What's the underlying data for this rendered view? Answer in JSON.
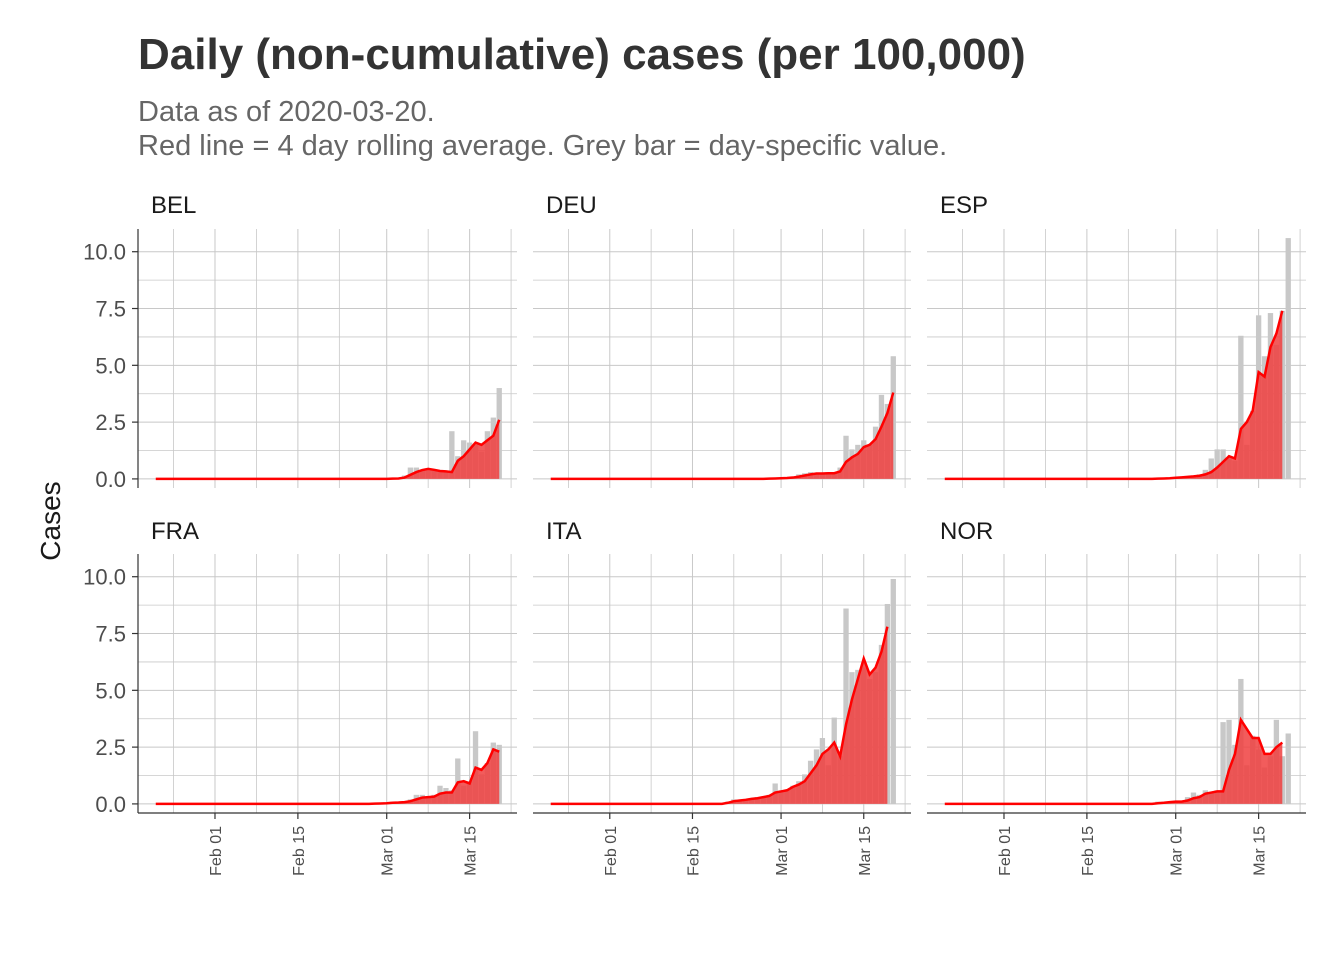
{
  "title": "Daily (non-cumulative) cases (per 100,000)",
  "subtitle_line1": "Data as of 2020-03-20.",
  "subtitle_line2": "Red line = 4 day rolling average. Grey bar = day-specific value.",
  "colors": {
    "bar": "#c8c8c8",
    "line": "#ff0000",
    "area": "#f04040",
    "grid": "#c8c8c8",
    "axis": "#333333"
  },
  "chart_data": {
    "type": "bar",
    "ylabel": "Cases",
    "xlabel": "",
    "ylim": [
      -0.4,
      11
    ],
    "y_ticks": [
      0,
      2.5,
      5,
      7.5,
      10
    ],
    "y_tick_labels": [
      "0.0",
      "2.5",
      "5.0",
      "7.5",
      "10.0"
    ],
    "x_ticks": [
      "2020-02-01",
      "2020-02-15",
      "2020-03-01",
      "2020-03-15"
    ],
    "x_tick_labels": [
      "Feb 01",
      "Feb 15",
      "Mar 01",
      "Mar 15"
    ],
    "x_range": [
      "2020-01-19",
      "2020-03-23"
    ],
    "grid": true,
    "panels": [
      {
        "name": "BEL",
        "dates": [
          "2020-02-20",
          "2020-02-21",
          "2020-02-22",
          "2020-02-23",
          "2020-02-24",
          "2020-02-25",
          "2020-02-26",
          "2020-02-27",
          "2020-02-28",
          "2020-02-29",
          "2020-03-01",
          "2020-03-02",
          "2020-03-03",
          "2020-03-04",
          "2020-03-05",
          "2020-03-06",
          "2020-03-07",
          "2020-03-08",
          "2020-03-09",
          "2020-03-10",
          "2020-03-11",
          "2020-03-12",
          "2020-03-13",
          "2020-03-14",
          "2020-03-15",
          "2020-03-16",
          "2020-03-17",
          "2020-03-18",
          "2020-03-19",
          "2020-03-20"
        ],
        "values": [
          0,
          0,
          0,
          0,
          0,
          0,
          0,
          0,
          0,
          0,
          0,
          0.02,
          0.05,
          0.15,
          0.5,
          0.5,
          0.4,
          0.35,
          0.35,
          0.3,
          0.3,
          2.1,
          1.0,
          1.7,
          1.6,
          1.5,
          1.2,
          2.1,
          2.7,
          4.0
        ],
        "rolling": [
          0,
          0,
          0,
          0,
          0,
          0,
          0,
          0,
          0,
          0,
          0,
          0.01,
          0.02,
          0.06,
          0.18,
          0.3,
          0.39,
          0.44,
          0.4,
          0.35,
          0.33,
          0.3,
          0.8,
          1.0,
          1.3,
          1.6,
          1.5,
          1.7,
          1.9,
          2.6
        ]
      },
      {
        "name": "DEU",
        "dates": [
          "2020-02-20",
          "2020-02-21",
          "2020-02-22",
          "2020-02-23",
          "2020-02-24",
          "2020-02-25",
          "2020-02-26",
          "2020-02-27",
          "2020-02-28",
          "2020-02-29",
          "2020-03-01",
          "2020-03-02",
          "2020-03-03",
          "2020-03-04",
          "2020-03-05",
          "2020-03-06",
          "2020-03-07",
          "2020-03-08",
          "2020-03-09",
          "2020-03-10",
          "2020-03-11",
          "2020-03-12",
          "2020-03-13",
          "2020-03-14",
          "2020-03-15",
          "2020-03-16",
          "2020-03-17",
          "2020-03-18",
          "2020-03-19",
          "2020-03-20"
        ],
        "values": [
          0,
          0,
          0,
          0,
          0,
          0,
          0,
          0.01,
          0.02,
          0.05,
          0.05,
          0.05,
          0.1,
          0.2,
          0.25,
          0.3,
          0.2,
          0.2,
          0.3,
          0.3,
          0.5,
          1.9,
          1.3,
          1.5,
          1.7,
          1.5,
          2.3,
          3.7,
          3.3,
          5.4
        ],
        "rolling": [
          0,
          0,
          0,
          0,
          0,
          0,
          0,
          0,
          0.01,
          0.02,
          0.03,
          0.04,
          0.06,
          0.1,
          0.15,
          0.2,
          0.24,
          0.24,
          0.25,
          0.25,
          0.33,
          0.75,
          0.95,
          1.1,
          1.4,
          1.5,
          1.75,
          2.3,
          2.9,
          3.8
        ]
      },
      {
        "name": "ESP",
        "dates": [
          "2020-02-20",
          "2020-02-21",
          "2020-02-22",
          "2020-02-23",
          "2020-02-24",
          "2020-02-25",
          "2020-02-26",
          "2020-02-27",
          "2020-02-28",
          "2020-02-29",
          "2020-03-01",
          "2020-03-02",
          "2020-03-03",
          "2020-03-04",
          "2020-03-05",
          "2020-03-06",
          "2020-03-07",
          "2020-03-08",
          "2020-03-09",
          "2020-03-10",
          "2020-03-11",
          "2020-03-12",
          "2020-03-13",
          "2020-03-14",
          "2020-03-15",
          "2020-03-16",
          "2020-03-17",
          "2020-03-18",
          "2020-03-19",
          "2020-03-20"
        ],
        "values": [
          0,
          0,
          0,
          0,
          0,
          0,
          0.01,
          0.02,
          0.03,
          0.05,
          0.08,
          0.1,
          0.12,
          0.15,
          0.2,
          0.4,
          0.9,
          1.3,
          1.3,
          0.9,
          0.8,
          6.3,
          1.5,
          3.0,
          7.2,
          5.4,
          7.3,
          5.9,
          7.4,
          10.6
        ],
        "rolling": [
          0,
          0,
          0,
          0,
          0,
          0,
          0,
          0.01,
          0.02,
          0.03,
          0.05,
          0.07,
          0.09,
          0.11,
          0.14,
          0.2,
          0.3,
          0.5,
          0.75,
          1.0,
          0.9,
          2.2,
          2.5,
          3.0,
          4.7,
          4.5,
          5.8,
          6.4,
          7.4,
          null
        ]
      },
      {
        "name": "FRA",
        "dates": [
          "2020-02-20",
          "2020-02-21",
          "2020-02-22",
          "2020-02-23",
          "2020-02-24",
          "2020-02-25",
          "2020-02-26",
          "2020-02-27",
          "2020-02-28",
          "2020-02-29",
          "2020-03-01",
          "2020-03-02",
          "2020-03-03",
          "2020-03-04",
          "2020-03-05",
          "2020-03-06",
          "2020-03-07",
          "2020-03-08",
          "2020-03-09",
          "2020-03-10",
          "2020-03-11",
          "2020-03-12",
          "2020-03-13",
          "2020-03-14",
          "2020-03-15",
          "2020-03-16",
          "2020-03-17",
          "2020-03-18",
          "2020-03-19",
          "2020-03-20"
        ],
        "values": [
          0,
          0,
          0,
          0,
          0,
          0,
          0,
          0.01,
          0.02,
          0.03,
          0.05,
          0.1,
          0.1,
          0.1,
          0.2,
          0.4,
          0.4,
          0.3,
          0.4,
          0.8,
          0.7,
          0.6,
          2.0,
          0.8,
          1.0,
          3.2,
          1.3,
          1.8,
          2.7,
          2.6
        ],
        "rolling": [
          0,
          0,
          0,
          0,
          0,
          0,
          0,
          0,
          0.01,
          0.02,
          0.03,
          0.05,
          0.06,
          0.08,
          0.12,
          0.2,
          0.28,
          0.3,
          0.32,
          0.45,
          0.5,
          0.5,
          0.95,
          1.0,
          0.9,
          1.6,
          1.5,
          1.8,
          2.4,
          2.3
        ]
      },
      {
        "name": "ITA",
        "dates": [
          "2020-02-20",
          "2020-02-21",
          "2020-02-22",
          "2020-02-23",
          "2020-02-24",
          "2020-02-25",
          "2020-02-26",
          "2020-02-27",
          "2020-02-28",
          "2020-02-29",
          "2020-03-01",
          "2020-03-02",
          "2020-03-03",
          "2020-03-04",
          "2020-03-05",
          "2020-03-06",
          "2020-03-07",
          "2020-03-08",
          "2020-03-09",
          "2020-03-10",
          "2020-03-11",
          "2020-03-12",
          "2020-03-13",
          "2020-03-14",
          "2020-03-15",
          "2020-03-16",
          "2020-03-17",
          "2020-03-18",
          "2020-03-19",
          "2020-03-20"
        ],
        "values": [
          0,
          0.1,
          0.2,
          0.15,
          0.2,
          0.25,
          0.3,
          0.3,
          0.4,
          0.9,
          0.6,
          0.6,
          0.8,
          1.0,
          1.3,
          1.9,
          2.4,
          2.9,
          1.7,
          3.8,
          2.1,
          8.6,
          5.8,
          5.9,
          6.0,
          5.5,
          5.8,
          7.0,
          8.8,
          9.9
        ],
        "rolling": [
          0,
          0.05,
          0.12,
          0.15,
          0.18,
          0.22,
          0.25,
          0.3,
          0.35,
          0.5,
          0.55,
          0.6,
          0.75,
          0.85,
          1.0,
          1.35,
          1.7,
          2.2,
          2.4,
          2.7,
          2.1,
          3.5,
          4.6,
          5.5,
          6.4,
          5.7,
          6.0,
          6.7,
          7.8,
          null
        ]
      },
      {
        "name": "NOR",
        "dates": [
          "2020-02-20",
          "2020-02-21",
          "2020-02-22",
          "2020-02-23",
          "2020-02-24",
          "2020-02-25",
          "2020-02-26",
          "2020-02-27",
          "2020-02-28",
          "2020-02-29",
          "2020-03-01",
          "2020-03-02",
          "2020-03-03",
          "2020-03-04",
          "2020-03-05",
          "2020-03-06",
          "2020-03-07",
          "2020-03-08",
          "2020-03-09",
          "2020-03-10",
          "2020-03-11",
          "2020-03-12",
          "2020-03-13",
          "2020-03-14",
          "2020-03-15",
          "2020-03-16",
          "2020-03-17",
          "2020-03-18",
          "2020-03-19",
          "2020-03-20"
        ],
        "values": [
          0,
          0,
          0,
          0,
          0,
          0,
          0,
          0.1,
          0.1,
          0.1,
          0.1,
          0.1,
          0.3,
          0.5,
          0.4,
          0.6,
          0.5,
          0.6,
          3.6,
          3.7,
          2.6,
          5.5,
          1.7,
          3.0,
          2.4,
          1.6,
          2.1,
          3.7,
          2.1,
          3.1
        ],
        "rolling": [
          0,
          0,
          0,
          0,
          0,
          0,
          0,
          0.03,
          0.05,
          0.08,
          0.1,
          0.1,
          0.15,
          0.25,
          0.3,
          0.45,
          0.5,
          0.55,
          0.55,
          1.5,
          2.2,
          3.7,
          3.3,
          2.9,
          2.9,
          2.2,
          2.2,
          2.5,
          2.7,
          null
        ]
      }
    ]
  }
}
